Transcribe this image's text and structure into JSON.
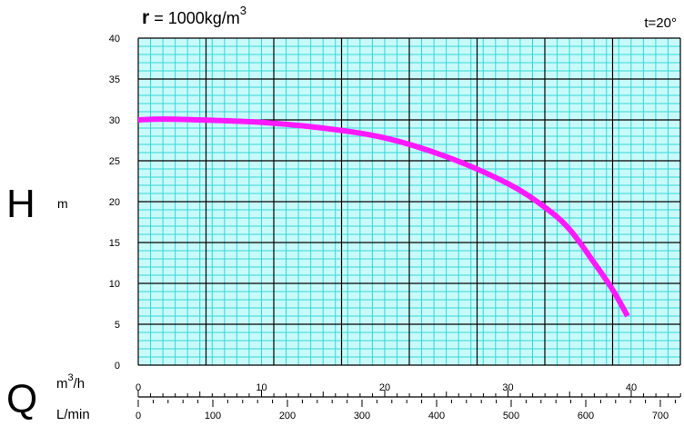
{
  "header": {
    "density_symbol": "r",
    "density_text": " = 1000kg/m",
    "density_exp": "3",
    "temperature": "t=20°"
  },
  "axes": {
    "h_symbol": "H",
    "h_unit": "m",
    "q_symbol": "Q",
    "q_unit_m3h_base": "m",
    "q_unit_m3h_exp": "3",
    "q_unit_m3h_tail": "/h",
    "q_unit_lmin": "L/min"
  },
  "colors": {
    "grid_fine": "#34d6d6",
    "grid_major": "#000000",
    "background": "#c8fafa",
    "curve": "#ff19ff"
  },
  "chart_data": {
    "type": "line",
    "title": "",
    "ylabel": "H m",
    "xlabel": "Q",
    "ylim": [
      0,
      40
    ],
    "y_ticks": [
      "0",
      "5",
      "10",
      "15",
      "20",
      "25",
      "30",
      "35",
      "40"
    ],
    "x_m3h_lim": [
      0,
      44
    ],
    "x_m3h_ticks": [
      "0",
      "10",
      "20",
      "30",
      "40"
    ],
    "x_lmin_ticks": [
      "0",
      "100",
      "200",
      "300",
      "400",
      "500",
      "600",
      "700"
    ],
    "grid": true,
    "series": [
      {
        "x_m3h": [
          0,
          2,
          5,
          10,
          15,
          20,
          25,
          30,
          33,
          35,
          37,
          38.5,
          39.7
        ],
        "y_m": [
          30,
          30.1,
          30.0,
          29.7,
          29.0,
          27.8,
          25.5,
          22.2,
          19.3,
          16.6,
          12.5,
          9.2,
          6.0
        ]
      }
    ]
  }
}
